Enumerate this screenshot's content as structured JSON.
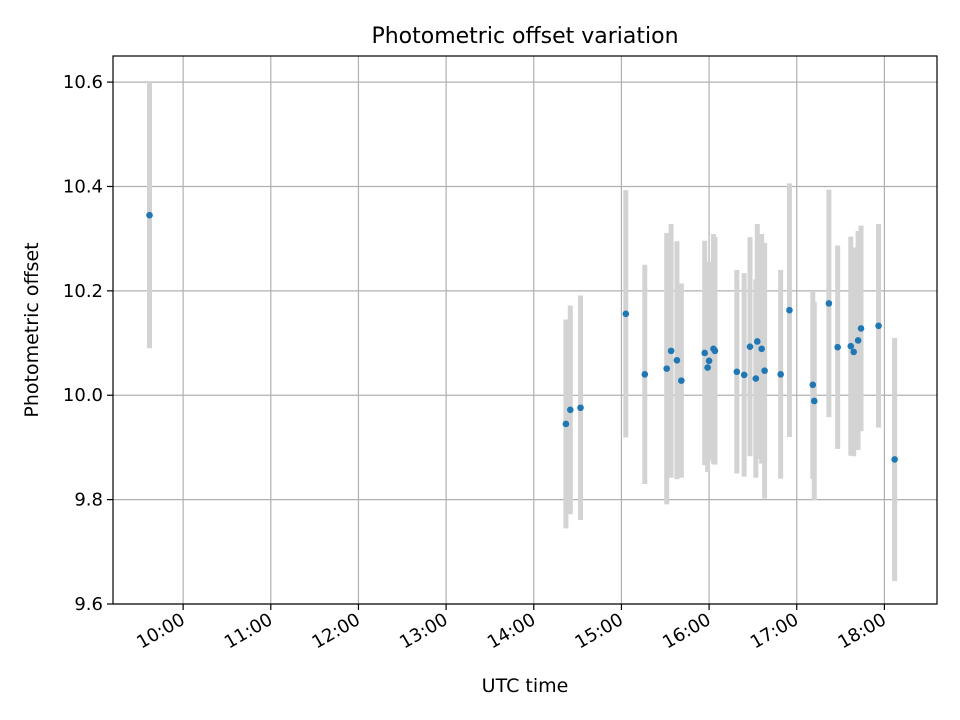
{
  "chart_data": {
    "type": "scatter",
    "title": "Photometric offset variation",
    "xlabel": "UTC time",
    "ylabel": "Photometric offset",
    "xlim": [
      "09:12",
      "18:36"
    ],
    "ylim": [
      9.6,
      10.65
    ],
    "x_ticks": [
      "10:00",
      "11:00",
      "12:00",
      "13:00",
      "14:00",
      "15:00",
      "16:00",
      "17:00",
      "18:00"
    ],
    "y_ticks": [
      "9.6",
      "9.8",
      "10.0",
      "10.2",
      "10.4",
      "10.6"
    ],
    "grid": true,
    "marker_color": "#1f77b4",
    "errorbar_color": "#d3d3d3",
    "points": [
      {
        "x": "09:37",
        "y": 10.345,
        "yerr": 0.255
      },
      {
        "x": "14:22",
        "y": 9.945,
        "yerr": 0.2
      },
      {
        "x": "14:25",
        "y": 9.972,
        "yerr": 0.2
      },
      {
        "x": "14:32",
        "y": 9.976,
        "yerr": 0.215
      },
      {
        "x": "15:03",
        "y": 10.156,
        "yerr": 0.237
      },
      {
        "x": "15:16",
        "y": 10.04,
        "yerr": 0.21
      },
      {
        "x": "15:31",
        "y": 10.051,
        "yerr": 0.26
      },
      {
        "x": "15:34",
        "y": 10.085,
        "yerr": 0.243
      },
      {
        "x": "15:38",
        "y": 10.067,
        "yerr": 0.228
      },
      {
        "x": "15:41",
        "y": 10.028,
        "yerr": 0.186
      },
      {
        "x": "15:57",
        "y": 10.081,
        "yerr": 0.215
      },
      {
        "x": "15:59",
        "y": 10.053,
        "yerr": 0.2
      },
      {
        "x": "16:00",
        "y": 10.066,
        "yerr": 0.19
      },
      {
        "x": "16:03",
        "y": 10.089,
        "yerr": 0.22
      },
      {
        "x": "16:04",
        "y": 10.085,
        "yerr": 0.218
      },
      {
        "x": "16:19",
        "y": 10.045,
        "yerr": 0.195
      },
      {
        "x": "16:24",
        "y": 10.039,
        "yerr": 0.195
      },
      {
        "x": "16:28",
        "y": 10.093,
        "yerr": 0.21
      },
      {
        "x": "16:32",
        "y": 10.032,
        "yerr": 0.19
      },
      {
        "x": "16:33",
        "y": 10.103,
        "yerr": 0.225
      },
      {
        "x": "16:36",
        "y": 10.089,
        "yerr": 0.22
      },
      {
        "x": "16:38",
        "y": 10.047,
        "yerr": 0.245
      },
      {
        "x": "16:49",
        "y": 10.04,
        "yerr": 0.2
      },
      {
        "x": "16:55",
        "y": 10.163,
        "yerr": 0.243
      },
      {
        "x": "17:11",
        "y": 10.02,
        "yerr": 0.18
      },
      {
        "x": "17:12",
        "y": 9.989,
        "yerr": 0.19
      },
      {
        "x": "17:22",
        "y": 10.176,
        "yerr": 0.218
      },
      {
        "x": "17:28",
        "y": 10.092,
        "yerr": 0.195
      },
      {
        "x": "17:37",
        "y": 10.094,
        "yerr": 0.21
      },
      {
        "x": "17:39",
        "y": 10.083,
        "yerr": 0.2
      },
      {
        "x": "17:42",
        "y": 10.105,
        "yerr": 0.21
      },
      {
        "x": "17:44",
        "y": 10.128,
        "yerr": 0.197
      },
      {
        "x": "17:56",
        "y": 10.133,
        "yerr": 0.195
      },
      {
        "x": "18:07",
        "y": 9.877,
        "yerr": 0.233
      }
    ]
  }
}
